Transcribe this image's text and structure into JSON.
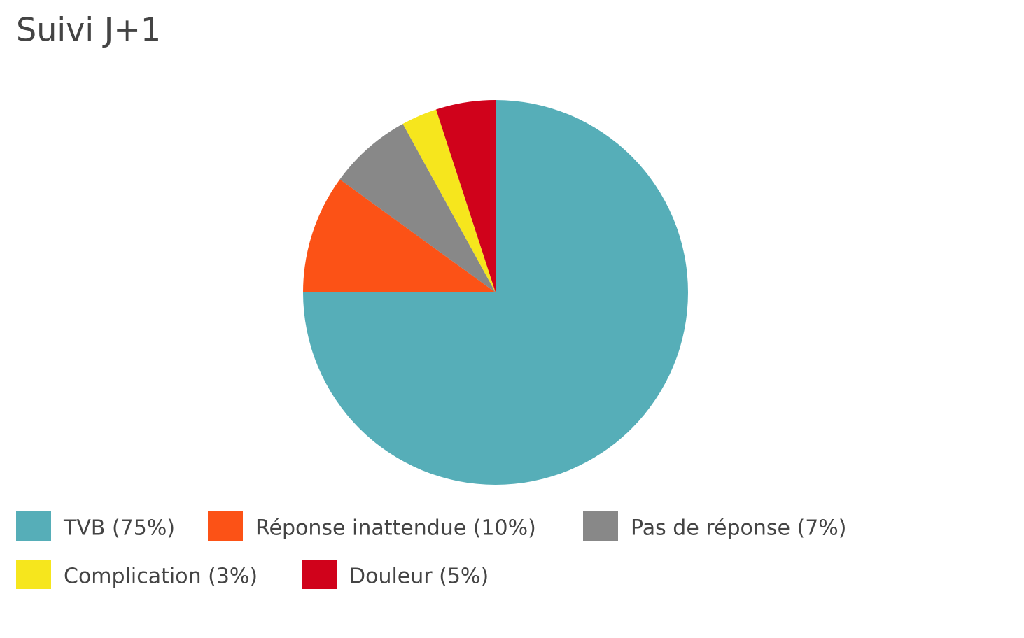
{
  "chart_data": {
    "type": "pie",
    "title": "Suivi J+1",
    "categories": [
      "TVB (75%)",
      "Réponse inattendue (10%)",
      "Pas de réponse (7%)",
      "Complication (3%)",
      "Douleur (5%)"
    ],
    "values": [
      75,
      10,
      7,
      3,
      5
    ],
    "colors": [
      "#56aeb8",
      "#fc5216",
      "#888888",
      "#f6e61d",
      "#d0021b"
    ]
  }
}
